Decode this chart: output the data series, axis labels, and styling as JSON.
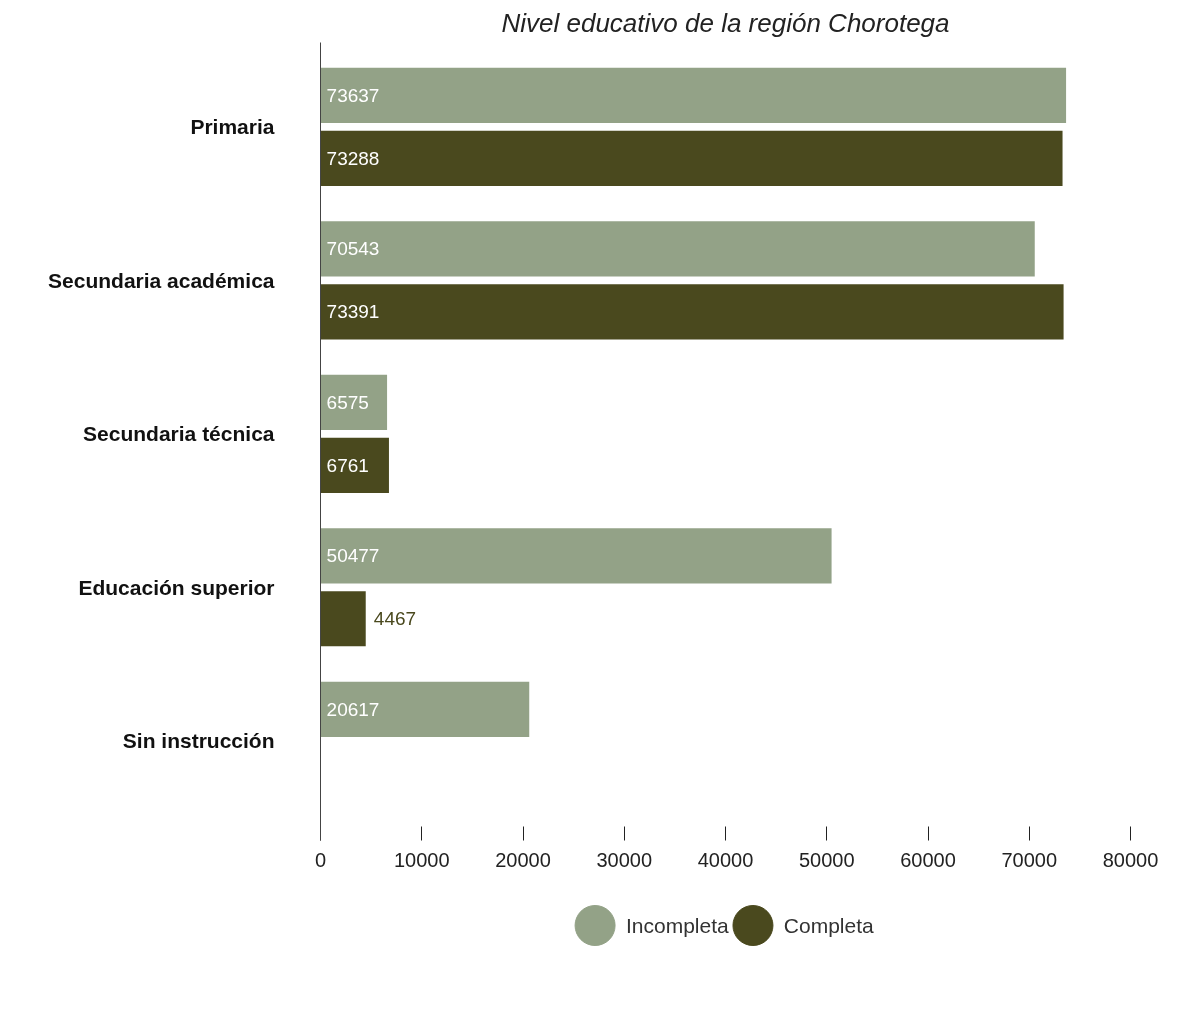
{
  "chart_data": {
    "type": "bar",
    "orientation": "horizontal",
    "title": "Nivel educativo de la región Chorotega",
    "categories": [
      "Primaria",
      "Secundaria académica",
      "Secundaria técnica",
      "Educación superior",
      "Sin instrucción"
    ],
    "series": [
      {
        "name": "Incompleta",
        "color": "#93a287",
        "values": [
          73637,
          70543,
          6575,
          50477,
          20617
        ]
      },
      {
        "name": "Completa",
        "color": "#4a491e",
        "values": [
          73288,
          73391,
          6761,
          4467,
          null
        ]
      }
    ],
    "xlim": [
      0,
      80000
    ],
    "xticks": [
      0,
      10000,
      20000,
      30000,
      40000,
      50000,
      60000,
      70000,
      80000
    ],
    "data_labels": true,
    "legend": "bottom",
    "grid": false
  }
}
